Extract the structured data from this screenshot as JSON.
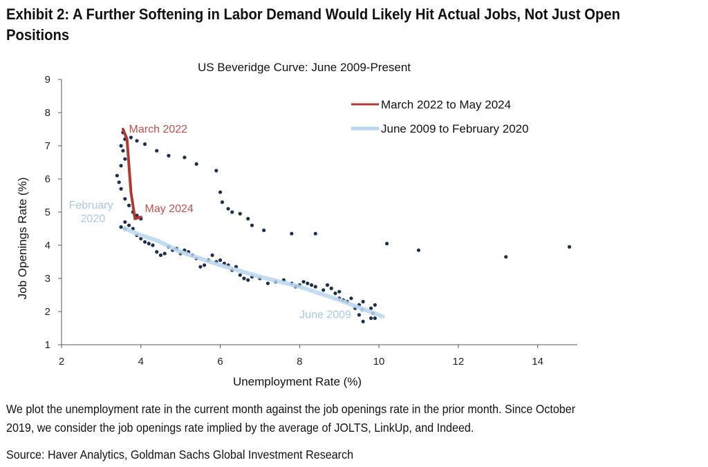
{
  "exhibit": {
    "title_line1": "Exhibit 2: A Further Softening in Labor Demand Would Likely Hit Actual Jobs, Not Just Open",
    "title_line2": "Positions",
    "caption_line1": "We plot the unemployment rate in the current month against the job openings rate in the prior month. Since October",
    "caption_line2": "2019, we consider the job openings rate implied by the average of JOLTS, LinkUp, and Indeed.",
    "source": "Source: Haver Analytics, Goldman Sachs Global Investment Research"
  },
  "chart_data": {
    "type": "scatter",
    "title": "US Beveridge  Curve:  June  2009-Present",
    "xlabel": "Unemployment Rate (%)",
    "ylabel": "Job Openings Rate (%)",
    "xlim": [
      2,
      15
    ],
    "ylim": [
      1,
      9
    ],
    "xticks": [
      2,
      4,
      6,
      8,
      10,
      12,
      14
    ],
    "yticks": [
      1,
      2,
      3,
      4,
      5,
      6,
      7,
      8,
      9
    ],
    "grid": false,
    "legend_position": "top-right",
    "colors": {
      "points": "#1c2f4e",
      "recent_line": "#b03a32",
      "prepandemic_line": "#b8d6ee",
      "recent_label": "#c0504d",
      "prepandemic_label": "#a9c8e4"
    },
    "series": [
      {
        "name": "March 2022 to May 2024",
        "type": "line",
        "points": [
          [
            3.55,
            7.5
          ],
          [
            3.65,
            7.2
          ],
          [
            3.75,
            5.6
          ],
          [
            3.85,
            4.8
          ],
          [
            4.0,
            4.85
          ]
        ]
      },
      {
        "name": "June 2009 to February 2020",
        "type": "line",
        "points": [
          [
            10.1,
            1.85
          ],
          [
            9.0,
            2.35
          ],
          [
            8.0,
            2.75
          ],
          [
            7.0,
            3.05
          ],
          [
            6.0,
            3.4
          ],
          [
            5.0,
            3.8
          ],
          [
            4.4,
            4.15
          ],
          [
            4.0,
            4.3
          ],
          [
            3.6,
            4.5
          ]
        ]
      },
      {
        "type": "scatter",
        "points": [
          [
            9.5,
            1.9
          ],
          [
            9.6,
            1.7
          ],
          [
            9.8,
            1.8
          ],
          [
            9.9,
            1.8
          ],
          [
            9.85,
            1.95
          ],
          [
            9.8,
            2.1
          ],
          [
            9.9,
            2.2
          ],
          [
            9.6,
            2.3
          ],
          [
            9.5,
            2.2
          ],
          [
            9.4,
            2.1
          ],
          [
            9.3,
            2.4
          ],
          [
            9.2,
            2.3
          ],
          [
            9.1,
            2.35
          ],
          [
            9.0,
            2.4
          ],
          [
            9.0,
            2.6
          ],
          [
            8.9,
            2.55
          ],
          [
            8.8,
            2.7
          ],
          [
            8.7,
            2.8
          ],
          [
            8.6,
            2.65
          ],
          [
            8.4,
            2.75
          ],
          [
            8.3,
            2.8
          ],
          [
            8.2,
            2.85
          ],
          [
            8.1,
            2.9
          ],
          [
            8.0,
            2.8
          ],
          [
            7.9,
            2.75
          ],
          [
            7.8,
            2.85
          ],
          [
            7.6,
            2.95
          ],
          [
            7.4,
            2.9
          ],
          [
            7.2,
            2.85
          ],
          [
            7.0,
            3.0
          ],
          [
            6.8,
            3.05
          ],
          [
            6.7,
            2.95
          ],
          [
            6.6,
            3.0
          ],
          [
            6.5,
            3.1
          ],
          [
            6.4,
            3.35
          ],
          [
            6.3,
            3.25
          ],
          [
            6.2,
            3.4
          ],
          [
            6.1,
            3.45
          ],
          [
            6.0,
            3.55
          ],
          [
            5.9,
            3.5
          ],
          [
            5.8,
            3.7
          ],
          [
            5.7,
            3.55
          ],
          [
            5.6,
            3.4
          ],
          [
            5.5,
            3.35
          ],
          [
            5.4,
            3.6
          ],
          [
            5.3,
            3.7
          ],
          [
            5.2,
            3.8
          ],
          [
            5.1,
            3.85
          ],
          [
            5.0,
            3.75
          ],
          [
            4.9,
            3.9
          ],
          [
            4.8,
            3.85
          ],
          [
            4.7,
            3.95
          ],
          [
            4.6,
            3.75
          ],
          [
            4.5,
            3.7
          ],
          [
            4.4,
            3.8
          ],
          [
            4.3,
            4.0
          ],
          [
            4.2,
            4.05
          ],
          [
            4.1,
            4.1
          ],
          [
            4.0,
            4.2
          ],
          [
            3.9,
            4.3
          ],
          [
            3.8,
            4.5
          ],
          [
            3.7,
            4.6
          ],
          [
            3.6,
            4.7
          ],
          [
            3.5,
            4.55
          ],
          [
            3.55,
            7.4
          ],
          [
            3.6,
            7.2
          ],
          [
            3.5,
            7.0
          ],
          [
            3.55,
            6.85
          ],
          [
            3.6,
            6.6
          ],
          [
            3.5,
            6.4
          ],
          [
            3.4,
            6.1
          ],
          [
            3.45,
            5.9
          ],
          [
            3.5,
            5.7
          ],
          [
            3.6,
            5.4
          ],
          [
            3.7,
            5.2
          ],
          [
            3.8,
            5.0
          ],
          [
            3.9,
            4.9
          ],
          [
            4.0,
            4.8
          ],
          [
            3.75,
            7.25
          ],
          [
            3.9,
            7.15
          ],
          [
            4.1,
            7.05
          ],
          [
            4.4,
            6.85
          ],
          [
            4.7,
            6.7
          ],
          [
            5.1,
            6.65
          ],
          [
            5.4,
            6.45
          ],
          [
            5.9,
            6.25
          ],
          [
            6.0,
            5.6
          ],
          [
            6.05,
            5.3
          ],
          [
            6.2,
            5.1
          ],
          [
            6.3,
            5.0
          ],
          [
            6.5,
            4.95
          ],
          [
            6.7,
            4.8
          ],
          [
            6.8,
            4.6
          ],
          [
            7.1,
            4.45
          ],
          [
            8.4,
            4.35
          ],
          [
            7.8,
            4.35
          ],
          [
            10.2,
            4.05
          ],
          [
            11.0,
            3.85
          ],
          [
            13.2,
            3.65
          ],
          [
            14.8,
            3.95
          ]
        ]
      }
    ],
    "annotations": [
      {
        "text": "March 2022",
        "x": 3.7,
        "y": 7.4
      },
      {
        "text": "May 2024",
        "x": 4.1,
        "y": 5.0
      },
      {
        "text": "February",
        "x": 3.3,
        "y": 5.1
      },
      {
        "text": "2020",
        "x": 3.1,
        "y": 4.7
      },
      {
        "text": "June 2009",
        "x": 9.3,
        "y": 1.8
      }
    ]
  }
}
